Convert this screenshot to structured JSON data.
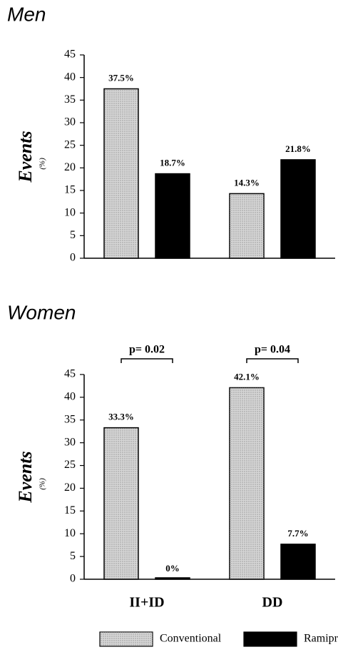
{
  "chart_data": [
    {
      "type": "bar",
      "title": "Men",
      "y_label": "Events",
      "y_unit": "(%)",
      "categories": [
        null,
        null
      ],
      "series": [
        {
          "color": "#d6d6d6",
          "values": [
            37.5,
            14.3
          ],
          "value_labels": [
            "37.5%",
            "14.3%"
          ]
        },
        {
          "color": "#000000",
          "values": [
            18.7,
            21.8
          ],
          "value_labels": [
            "18.7%",
            "21.8%"
          ]
        }
      ],
      "ylim": [
        0,
        45
      ],
      "yticks": [
        0,
        5,
        10,
        15,
        20,
        25,
        30,
        35,
        40,
        45
      ]
    },
    {
      "type": "bar",
      "title": "Women",
      "y_label": "Events",
      "y_unit": "(%)",
      "categories": [
        "II+ID",
        "DD"
      ],
      "series": [
        {
          "name": "Conventional",
          "color": "#d6d6d6",
          "values": [
            33.3,
            42.1
          ],
          "value_labels": [
            "33.3%",
            "42.1%"
          ]
        },
        {
          "name": "Ramipril",
          "color": "#000000",
          "values": [
            0,
            7.7
          ],
          "value_labels": [
            "0%",
            "7.7%"
          ]
        }
      ],
      "annotations": [
        "p= 0.02",
        "p= 0.04"
      ],
      "ylim": [
        0,
        45
      ],
      "yticks": [
        0,
        5,
        10,
        15,
        20,
        25,
        30,
        35,
        40,
        45
      ]
    }
  ]
}
